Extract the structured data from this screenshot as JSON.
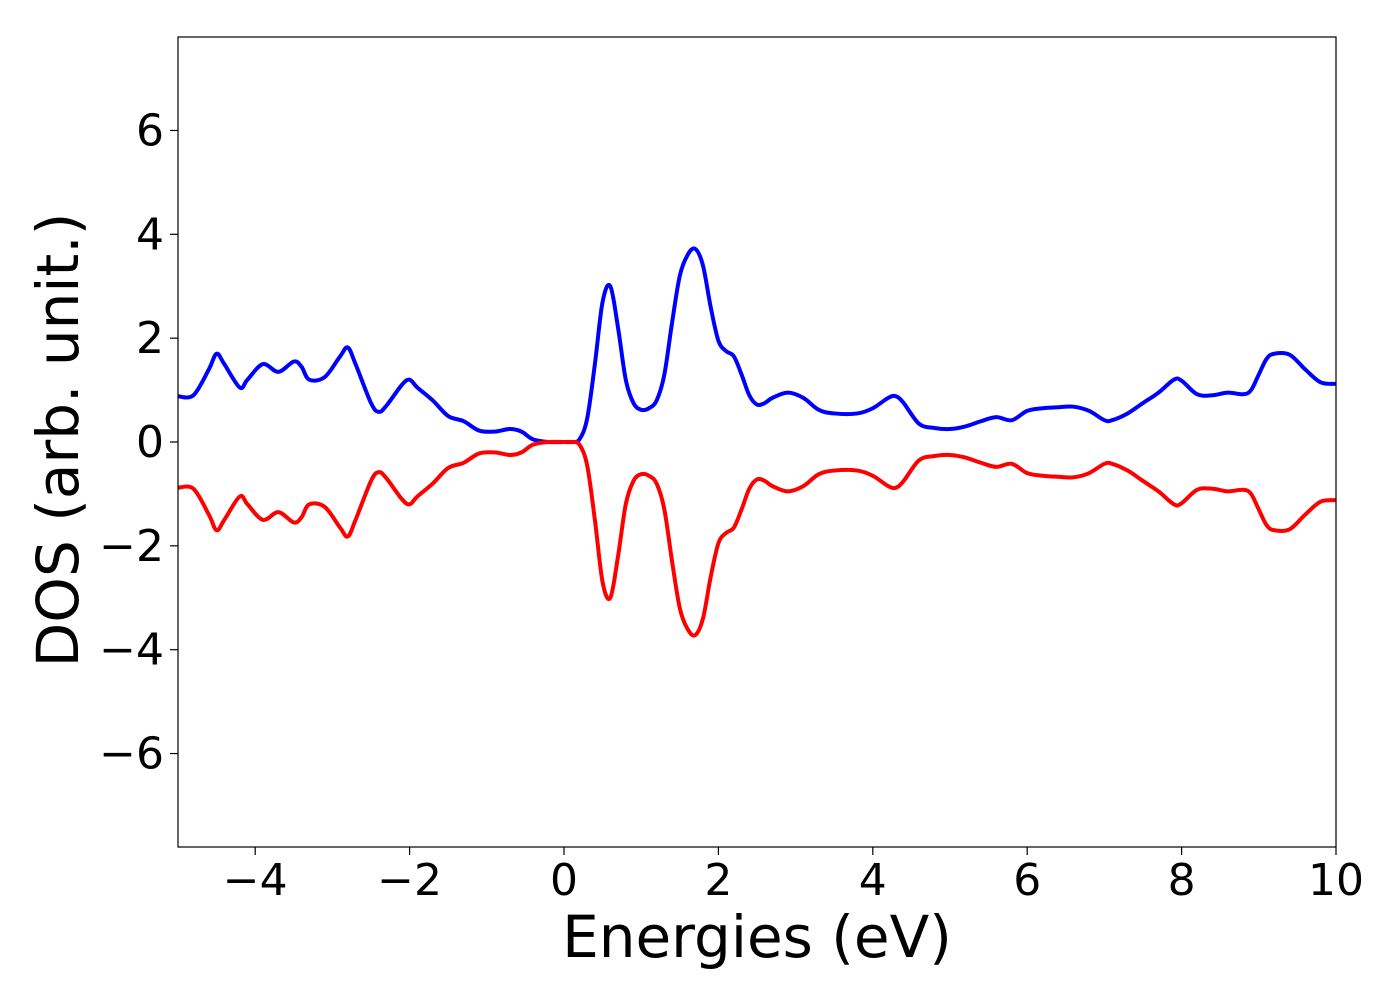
{
  "chart_data": {
    "type": "line",
    "title": "",
    "xlabel": "Energies (eV)",
    "ylabel": "DOS (arb. unit.)",
    "xlim": [
      -5,
      10
    ],
    "ylim": [
      -7.8,
      7.8
    ],
    "grid": false,
    "x_ticks": [
      -4,
      -2,
      0,
      2,
      4,
      6,
      8,
      10
    ],
    "x_tick_labels": [
      "−4",
      "−2",
      "0",
      "2",
      "4",
      "6",
      "8",
      "10"
    ],
    "y_ticks": [
      -6,
      -4,
      -2,
      0,
      2,
      4,
      6
    ],
    "y_tick_labels": [
      "−6",
      "−4",
      "−2",
      "0",
      "2",
      "4",
      "6"
    ],
    "series": [
      {
        "color": "#0000ff",
        "x": [
          -5.0,
          -4.8,
          -4.6,
          -4.5,
          -4.4,
          -4.2,
          -4.1,
          -3.9,
          -3.7,
          -3.5,
          -3.4,
          -3.3,
          -3.1,
          -2.9,
          -2.8,
          -2.7,
          -2.5,
          -2.4,
          -2.3,
          -2.1,
          -2.0,
          -1.9,
          -1.7,
          -1.5,
          -1.3,
          -1.1,
          -0.9,
          -0.7,
          -0.55,
          -0.4,
          -0.2,
          0.0,
          0.1,
          0.2,
          0.3,
          0.4,
          0.5,
          0.6,
          0.7,
          0.8,
          0.9,
          1.0,
          1.1,
          1.2,
          1.3,
          1.4,
          1.5,
          1.6,
          1.7,
          1.8,
          1.9,
          2.0,
          2.1,
          2.2,
          2.3,
          2.4,
          2.5,
          2.6,
          2.7,
          2.9,
          3.1,
          3.3,
          3.5,
          3.8,
          4.0,
          4.2,
          4.3,
          4.4,
          4.6,
          4.8,
          5.0,
          5.2,
          5.4,
          5.6,
          5.8,
          6.0,
          6.2,
          6.4,
          6.6,
          6.8,
          7.0,
          7.1,
          7.3,
          7.5,
          7.7,
          7.9,
          8.0,
          8.2,
          8.4,
          8.6,
          8.8,
          8.9,
          9.0,
          9.1,
          9.2,
          9.4,
          9.6,
          9.8,
          10.0
        ],
        "values": [
          0.88,
          0.9,
          1.4,
          1.7,
          1.5,
          1.05,
          1.2,
          1.5,
          1.35,
          1.55,
          1.45,
          1.2,
          1.25,
          1.65,
          1.82,
          1.5,
          0.75,
          0.58,
          0.7,
          1.1,
          1.2,
          1.05,
          0.8,
          0.5,
          0.4,
          0.22,
          0.2,
          0.25,
          0.2,
          0.05,
          0.0,
          0.0,
          0.0,
          0.05,
          0.45,
          1.5,
          2.7,
          3.0,
          2.2,
          1.2,
          0.75,
          0.62,
          0.65,
          0.8,
          1.3,
          2.3,
          3.2,
          3.6,
          3.72,
          3.4,
          2.6,
          1.95,
          1.75,
          1.65,
          1.3,
          0.9,
          0.72,
          0.75,
          0.85,
          0.95,
          0.85,
          0.62,
          0.55,
          0.55,
          0.65,
          0.85,
          0.88,
          0.75,
          0.35,
          0.27,
          0.25,
          0.3,
          0.4,
          0.48,
          0.42,
          0.6,
          0.65,
          0.67,
          0.68,
          0.6,
          0.42,
          0.42,
          0.55,
          0.75,
          0.95,
          1.2,
          1.18,
          0.92,
          0.9,
          0.95,
          0.92,
          1.0,
          1.3,
          1.6,
          1.7,
          1.68,
          1.4,
          1.15,
          1.12
        ]
      },
      {
        "color": "#ff0000",
        "x": [
          -5.0,
          -4.8,
          -4.6,
          -4.5,
          -4.4,
          -4.2,
          -4.1,
          -3.9,
          -3.7,
          -3.5,
          -3.4,
          -3.3,
          -3.1,
          -2.9,
          -2.8,
          -2.7,
          -2.5,
          -2.4,
          -2.3,
          -2.1,
          -2.0,
          -1.9,
          -1.7,
          -1.5,
          -1.3,
          -1.1,
          -0.9,
          -0.7,
          -0.55,
          -0.4,
          -0.2,
          0.0,
          0.1,
          0.2,
          0.3,
          0.4,
          0.5,
          0.6,
          0.7,
          0.8,
          0.9,
          1.0,
          1.1,
          1.2,
          1.3,
          1.4,
          1.5,
          1.6,
          1.7,
          1.8,
          1.9,
          2.0,
          2.1,
          2.2,
          2.3,
          2.4,
          2.5,
          2.6,
          2.7,
          2.9,
          3.1,
          3.3,
          3.5,
          3.8,
          4.0,
          4.2,
          4.3,
          4.4,
          4.6,
          4.8,
          5.0,
          5.2,
          5.4,
          5.6,
          5.8,
          6.0,
          6.2,
          6.4,
          6.6,
          6.8,
          7.0,
          7.1,
          7.3,
          7.5,
          7.7,
          7.9,
          8.0,
          8.2,
          8.4,
          8.6,
          8.8,
          8.9,
          9.0,
          9.1,
          9.2,
          9.4,
          9.6,
          9.8,
          10.0
        ],
        "values": [
          -0.88,
          -0.9,
          -1.4,
          -1.7,
          -1.5,
          -1.05,
          -1.2,
          -1.5,
          -1.35,
          -1.55,
          -1.45,
          -1.2,
          -1.25,
          -1.65,
          -1.82,
          -1.5,
          -0.75,
          -0.58,
          -0.7,
          -1.1,
          -1.2,
          -1.05,
          -0.8,
          -0.5,
          -0.4,
          -0.22,
          -0.2,
          -0.25,
          -0.2,
          -0.05,
          0.0,
          0.0,
          0.0,
          -0.05,
          -0.45,
          -1.5,
          -2.7,
          -3.0,
          -2.2,
          -1.2,
          -0.75,
          -0.62,
          -0.65,
          -0.8,
          -1.3,
          -2.3,
          -3.2,
          -3.6,
          -3.72,
          -3.4,
          -2.6,
          -1.95,
          -1.75,
          -1.65,
          -1.3,
          -0.9,
          -0.72,
          -0.75,
          -0.85,
          -0.95,
          -0.85,
          -0.62,
          -0.55,
          -0.55,
          -0.65,
          -0.85,
          -0.88,
          -0.75,
          -0.35,
          -0.27,
          -0.25,
          -0.3,
          -0.4,
          -0.48,
          -0.42,
          -0.6,
          -0.65,
          -0.67,
          -0.68,
          -0.6,
          -0.42,
          -0.42,
          -0.55,
          -0.75,
          -0.95,
          -1.2,
          -1.18,
          -0.92,
          -0.9,
          -0.95,
          -0.92,
          -1.0,
          -1.3,
          -1.6,
          -1.7,
          -1.68,
          -1.4,
          -1.15,
          -1.12
        ]
      }
    ]
  }
}
